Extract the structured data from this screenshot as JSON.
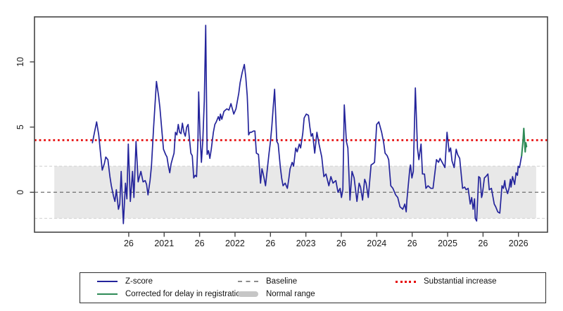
{
  "chart_data": {
    "type": "line",
    "title": "",
    "xlabel": "",
    "ylabel": "",
    "grid": false,
    "x_axis": {
      "lim": [
        2019.17,
        2026.41
      ],
      "ticks": [
        2020.5,
        2021,
        2021.5,
        2022,
        2022.5,
        2023,
        2023.5,
        2024,
        2024.5,
        2025,
        2025.5,
        2026
      ],
      "tick_labels": [
        "26",
        "2021",
        "26",
        "2022",
        "26",
        "2023",
        "26",
        "2024",
        "26",
        "2025",
        "26",
        "2026"
      ]
    },
    "y_axis": {
      "lim": [
        -3.06,
        13.45
      ],
      "ticks": [
        0,
        5,
        10
      ],
      "tick_labels": [
        "0",
        "5",
        "10"
      ]
    },
    "threshold_line": {
      "value": 4,
      "style": "dotted",
      "color": "#e60000",
      "label": "Substantial increase"
    },
    "baseline_line": {
      "value": 0,
      "style": "dashed",
      "color": "#6e6e6e",
      "label": "Baseline"
    },
    "normal_range": {
      "low": -2,
      "high": 2,
      "x_start": 2019.45,
      "x_end": 2026.25,
      "fill": "#e8e8e8",
      "edge_line_color": "#d8d8d8",
      "label": "Normal range"
    },
    "series": [
      {
        "name": "Z-score",
        "color": "#24249b",
        "points": [
          [
            2019.987,
            3.8
          ],
          [
            2020.017,
            4.6
          ],
          [
            2020.047,
            5.4
          ],
          [
            2020.077,
            4.4
          ],
          [
            2020.106,
            2.8
          ],
          [
            2020.126,
            1.7
          ],
          [
            2020.156,
            2.2
          ],
          [
            2020.176,
            2.7
          ],
          [
            2020.206,
            2.5
          ],
          [
            2020.235,
            1.2
          ],
          [
            2020.255,
            0.5
          ],
          [
            2020.285,
            -0.3
          ],
          [
            2020.305,
            -0.7
          ],
          [
            2020.325,
            0.2
          ],
          [
            2020.355,
            -1.3
          ],
          [
            2020.374,
            -0.9
          ],
          [
            2020.394,
            1.6
          ],
          [
            2020.414,
            -1.2
          ],
          [
            2020.424,
            -2.4
          ],
          [
            2020.454,
            0.7
          ],
          [
            2020.474,
            -0.5
          ],
          [
            2020.494,
            3.7
          ],
          [
            2020.523,
            -0.7
          ],
          [
            2020.553,
            1.6
          ],
          [
            2020.573,
            -0.4
          ],
          [
            2020.603,
            3.9
          ],
          [
            2020.633,
            0.8
          ],
          [
            2020.652,
            1.2
          ],
          [
            2020.672,
            1.6
          ],
          [
            2020.702,
            0.8
          ],
          [
            2020.732,
            0.9
          ],
          [
            2020.752,
            0.6
          ],
          [
            2020.772,
            -0.2
          ],
          [
            2020.801,
            0.9
          ],
          [
            2020.821,
            2.0
          ],
          [
            2020.851,
            5.0
          ],
          [
            2020.891,
            8.5
          ],
          [
            2020.921,
            7.4
          ],
          [
            2020.94,
            6.5
          ],
          [
            2020.97,
            4.6
          ],
          [
            2020.99,
            3.3
          ],
          [
            2021.02,
            2.9
          ],
          [
            2021.04,
            2.7
          ],
          [
            2021.06,
            2.0
          ],
          [
            2021.079,
            1.5
          ],
          [
            2021.099,
            2.2
          ],
          [
            2021.119,
            2.6
          ],
          [
            2021.139,
            3.0
          ],
          [
            2021.159,
            4.6
          ],
          [
            2021.179,
            4.4
          ],
          [
            2021.199,
            5.2
          ],
          [
            2021.218,
            4.6
          ],
          [
            2021.238,
            4.5
          ],
          [
            2021.258,
            5.3
          ],
          [
            2021.278,
            4.6
          ],
          [
            2021.298,
            4.3
          ],
          [
            2021.318,
            5.0
          ],
          [
            2021.338,
            5.2
          ],
          [
            2021.357,
            4.1
          ],
          [
            2021.377,
            3.0
          ],
          [
            2021.397,
            2.8
          ],
          [
            2021.417,
            1.1
          ],
          [
            2021.437,
            1.3
          ],
          [
            2021.457,
            1.2
          ],
          [
            2021.477,
            4.0
          ],
          [
            2021.487,
            7.7
          ],
          [
            2021.506,
            4.5
          ],
          [
            2021.526,
            2.3
          ],
          [
            2021.546,
            4.0
          ],
          [
            2021.566,
            7.0
          ],
          [
            2021.586,
            12.8
          ],
          [
            2021.606,
            2.9
          ],
          [
            2021.626,
            3.2
          ],
          [
            2021.645,
            2.6
          ],
          [
            2021.665,
            3.3
          ],
          [
            2021.695,
            4.6
          ],
          [
            2021.715,
            5.2
          ],
          [
            2021.735,
            5.4
          ],
          [
            2021.765,
            5.8
          ],
          [
            2021.784,
            5.5
          ],
          [
            2021.794,
            6.0
          ],
          [
            2021.814,
            5.6
          ],
          [
            2021.844,
            6.2
          ],
          [
            2021.864,
            6.3
          ],
          [
            2021.884,
            6.4
          ],
          [
            2021.914,
            6.3
          ],
          [
            2021.943,
            6.8
          ],
          [
            2021.963,
            6.4
          ],
          [
            2021.983,
            6.0
          ],
          [
            2022.013,
            6.4
          ],
          [
            2022.033,
            7.0
          ],
          [
            2022.053,
            7.6
          ],
          [
            2022.072,
            8.4
          ],
          [
            2022.102,
            9.2
          ],
          [
            2022.132,
            9.8
          ],
          [
            2022.152,
            8.8
          ],
          [
            2022.172,
            7.4
          ],
          [
            2022.182,
            6.1
          ],
          [
            2022.192,
            4.4
          ],
          [
            2022.211,
            4.6
          ],
          [
            2022.231,
            4.6
          ],
          [
            2022.261,
            4.7
          ],
          [
            2022.281,
            4.7
          ],
          [
            2022.301,
            3.0
          ],
          [
            2022.331,
            2.9
          ],
          [
            2022.36,
            0.7
          ],
          [
            2022.38,
            1.8
          ],
          [
            2022.39,
            1.6
          ],
          [
            2022.41,
            1.1
          ],
          [
            2022.43,
            0.5
          ],
          [
            2022.45,
            1.5
          ],
          [
            2022.48,
            3.0
          ],
          [
            2022.5,
            3.9
          ],
          [
            2022.519,
            5.0
          ],
          [
            2022.539,
            6.5
          ],
          [
            2022.559,
            7.9
          ],
          [
            2022.589,
            3.9
          ],
          [
            2022.609,
            3.7
          ],
          [
            2022.638,
            2.0
          ],
          [
            2022.658,
            1.1
          ],
          [
            2022.678,
            0.5
          ],
          [
            2022.708,
            0.7
          ],
          [
            2022.738,
            0.3
          ],
          [
            2022.758,
            1.0
          ],
          [
            2022.777,
            1.8
          ],
          [
            2022.807,
            2.3
          ],
          [
            2022.827,
            2.0
          ],
          [
            2022.857,
            3.4
          ],
          [
            2022.877,
            3.1
          ],
          [
            2022.907,
            3.7
          ],
          [
            2022.926,
            3.4
          ],
          [
            2022.956,
            4.5
          ],
          [
            2022.976,
            5.7
          ],
          [
            2023.006,
            6.0
          ],
          [
            2023.036,
            5.9
          ],
          [
            2023.056,
            5.0
          ],
          [
            2023.075,
            4.3
          ],
          [
            2023.095,
            4.5
          ],
          [
            2023.125,
            3.0
          ],
          [
            2023.155,
            4.6
          ],
          [
            2023.185,
            3.7
          ],
          [
            2023.224,
            2.7
          ],
          [
            2023.254,
            1.2
          ],
          [
            2023.284,
            1.4
          ],
          [
            2023.324,
            0.5
          ],
          [
            2023.353,
            1.2
          ],
          [
            2023.383,
            0.7
          ],
          [
            2023.423,
            0.9
          ],
          [
            2023.453,
            0.0
          ],
          [
            2023.483,
            0.3
          ],
          [
            2023.502,
            -0.4
          ],
          [
            2023.522,
            0.2
          ],
          [
            2023.542,
            6.7
          ],
          [
            2023.572,
            3.9
          ],
          [
            2023.592,
            3.4
          ],
          [
            2023.622,
            -0.6
          ],
          [
            2023.651,
            1.6
          ],
          [
            2023.681,
            1.1
          ],
          [
            2023.721,
            -0.7
          ],
          [
            2023.751,
            0.7
          ],
          [
            2023.771,
            0.4
          ],
          [
            2023.8,
            -0.6
          ],
          [
            2023.83,
            1.0
          ],
          [
            2023.85,
            0.7
          ],
          [
            2023.88,
            -0.4
          ],
          [
            2023.92,
            2.1
          ],
          [
            2023.949,
            2.2
          ],
          [
            2023.969,
            2.3
          ],
          [
            2023.999,
            5.2
          ],
          [
            2024.029,
            5.4
          ],
          [
            2024.049,
            5.0
          ],
          [
            2024.069,
            4.6
          ],
          [
            2024.098,
            3.8
          ],
          [
            2024.118,
            3.0
          ],
          [
            2024.148,
            2.8
          ],
          [
            2024.168,
            2.5
          ],
          [
            2024.198,
            0.5
          ],
          [
            2024.228,
            0.3
          ],
          [
            2024.267,
            -0.2
          ],
          [
            2024.297,
            -0.4
          ],
          [
            2024.327,
            -1.1
          ],
          [
            2024.367,
            -1.3
          ],
          [
            2024.396,
            -0.9
          ],
          [
            2024.416,
            -1.5
          ],
          [
            2024.426,
            -0.6
          ],
          [
            2024.466,
            1.8
          ],
          [
            2024.476,
            2.1
          ],
          [
            2024.496,
            1.1
          ],
          [
            2024.516,
            1.6
          ],
          [
            2024.545,
            8.0
          ],
          [
            2024.575,
            3.4
          ],
          [
            2024.595,
            2.5
          ],
          [
            2024.625,
            3.7
          ],
          [
            2024.645,
            1.4
          ],
          [
            2024.674,
            1.4
          ],
          [
            2024.694,
            0.3
          ],
          [
            2024.724,
            0.5
          ],
          [
            2024.764,
            0.3
          ],
          [
            2024.794,
            0.3
          ],
          [
            2024.823,
            1.6
          ],
          [
            2024.843,
            2.5
          ],
          [
            2024.873,
            2.3
          ],
          [
            2024.893,
            2.6
          ],
          [
            2024.923,
            2.3
          ],
          [
            2024.962,
            1.9
          ],
          [
            2024.992,
            4.6
          ],
          [
            2025.022,
            3.1
          ],
          [
            2025.042,
            3.4
          ],
          [
            2025.062,
            2.4
          ],
          [
            2025.092,
            1.9
          ],
          [
            2025.121,
            3.3
          ],
          [
            2025.141,
            2.9
          ],
          [
            2025.171,
            2.6
          ],
          [
            2025.211,
            0.3
          ],
          [
            2025.241,
            0.4
          ],
          [
            2025.261,
            0.2
          ],
          [
            2025.29,
            0.3
          ],
          [
            2025.32,
            -0.9
          ],
          [
            2025.34,
            -0.4
          ],
          [
            2025.36,
            -1.3
          ],
          [
            2025.38,
            -0.5
          ],
          [
            2025.39,
            -2.0
          ],
          [
            2025.41,
            -2.2
          ],
          [
            2025.439,
            1.2
          ],
          [
            2025.459,
            1.1
          ],
          [
            2025.479,
            -0.4
          ],
          [
            2025.489,
            -0.2
          ],
          [
            2025.519,
            1.1
          ],
          [
            2025.539,
            1.2
          ],
          [
            2025.569,
            1.4
          ],
          [
            2025.588,
            0.2
          ],
          [
            2025.618,
            0.3
          ],
          [
            2025.658,
            -0.9
          ],
          [
            2025.678,
            -1.1
          ],
          [
            2025.708,
            -1.5
          ],
          [
            2025.737,
            -1.6
          ],
          [
            2025.767,
            0.5
          ],
          [
            2025.787,
            0.3
          ],
          [
            2025.807,
            0.9
          ],
          [
            2025.817,
            0.4
          ],
          [
            2025.847,
            -0.1
          ],
          [
            2025.867,
            0.3
          ],
          [
            2025.887,
            1.0
          ],
          [
            2025.896,
            0.4
          ],
          [
            2025.916,
            1.2
          ],
          [
            2025.936,
            0.8
          ],
          [
            2025.946,
            0.6
          ],
          [
            2025.966,
            1.5
          ],
          [
            2025.986,
            1.3
          ],
          [
            2025.996,
            2.0
          ],
          [
            2026.015,
            1.9
          ],
          [
            2026.035,
            2.5
          ],
          [
            2026.045,
            2.8
          ]
        ]
      },
      {
        "name": "Corrected for delay in registration",
        "color": "#2e8b57",
        "points": [
          [
            2026.045,
            2.8
          ],
          [
            2026.065,
            4.0
          ],
          [
            2026.075,
            4.9
          ],
          [
            2026.095,
            3.1
          ],
          [
            2026.104,
            3.8
          ],
          [
            2026.114,
            3.5
          ]
        ]
      }
    ]
  },
  "legend": {
    "border_color": "#2e2e2e",
    "columns": [
      {
        "items": [
          {
            "label": "Z-score",
            "swatch": "solid",
            "color": "#24249b"
          },
          {
            "label": "Corrected for delay in registration",
            "swatch": "solid",
            "color": "#2e8b57"
          }
        ]
      },
      {
        "items": [
          {
            "label": "Baseline",
            "swatch": "dashed",
            "color": "#8c8c8c"
          },
          {
            "label": "Normal range",
            "swatch": "band",
            "color": "#c6c6c6"
          }
        ]
      },
      {
        "items": [
          {
            "label": "Substantial increase",
            "swatch": "dotted",
            "color": "#e60000"
          }
        ]
      }
    ]
  }
}
